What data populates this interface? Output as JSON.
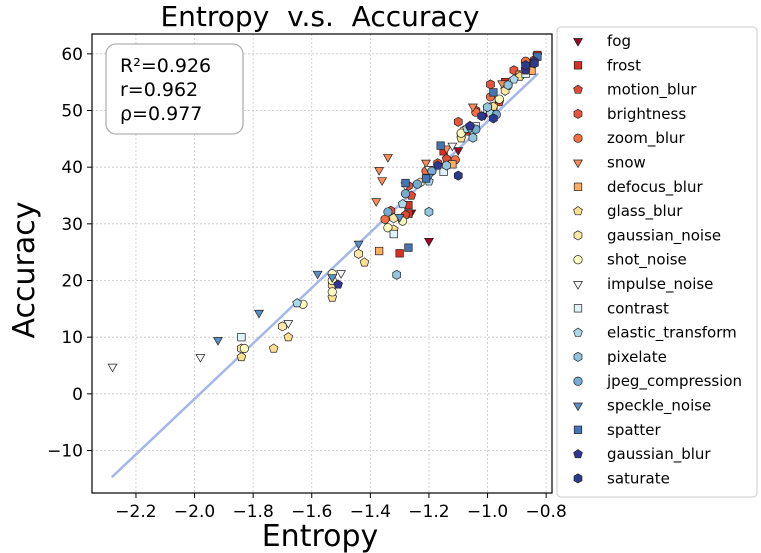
{
  "chart_data": {
    "type": "scatter",
    "title": "Entropy  v.s.  Accuracy",
    "xlabel": "Entropy",
    "ylabel": "Accuracy",
    "xlim": [
      -2.35,
      -0.78
    ],
    "ylim": [
      -17.5,
      63.5
    ],
    "xticks": [
      -2.2,
      -2.0,
      -1.8,
      -1.6,
      -1.4,
      -1.2,
      -1.0,
      -0.8
    ],
    "xtick_labels": [
      "−2.2",
      "−2.0",
      "−1.8",
      "−1.6",
      "−1.4",
      "−1.2",
      "−1.0",
      "−0.8"
    ],
    "yticks": [
      -10,
      0,
      10,
      20,
      30,
      40,
      50,
      60
    ],
    "ytick_labels": [
      "−10",
      "0",
      "10",
      "20",
      "30",
      "40",
      "50",
      "60"
    ],
    "grid": true,
    "legend_position": "outside-right",
    "stats": [
      "R²=0.926",
      "r=0.962",
      "ρ=0.977"
    ],
    "fit_line": {
      "color": "#a3b8e8",
      "x": [
        -2.28,
        -0.83
      ],
      "y": [
        -14.6,
        56.4
      ]
    },
    "series": [
      {
        "name": "fog",
        "marker": "triangle-down",
        "color": "#a50026",
        "points": [
          [
            -0.83,
            59.5
          ],
          [
            -0.86,
            57.8
          ],
          [
            -0.94,
            53.5
          ],
          [
            -1.01,
            49.2
          ],
          [
            -1.1,
            43.0
          ],
          [
            -1.2,
            39.5
          ],
          [
            -1.26,
            32.0
          ],
          [
            -1.2,
            27.0
          ]
        ]
      },
      {
        "name": "frost",
        "marker": "square",
        "color": "#d73027",
        "points": [
          [
            -0.83,
            59.8
          ],
          [
            -0.87,
            58.2
          ],
          [
            -0.94,
            55.0
          ],
          [
            -1.15,
            42.8
          ],
          [
            -1.27,
            33.3
          ],
          [
            -1.27,
            31.8
          ],
          [
            -1.3,
            24.8
          ]
        ]
      },
      {
        "name": "motion_blur",
        "marker": "pentagon",
        "color": "#e34a33",
        "points": [
          [
            -0.84,
            59.0
          ],
          [
            -0.87,
            57.3
          ],
          [
            -0.93,
            54.4
          ],
          [
            -0.96,
            51.5
          ],
          [
            -1.07,
            46.3
          ],
          [
            -1.14,
            41.5
          ],
          [
            -1.26,
            35.0
          ],
          [
            -1.28,
            31.6
          ]
        ]
      },
      {
        "name": "brightness",
        "marker": "hexagon",
        "color": "#e8543b",
        "points": [
          [
            -0.87,
            58.6
          ],
          [
            -0.91,
            57.1
          ],
          [
            -0.99,
            54.6
          ],
          [
            -1.04,
            50.0
          ],
          [
            -1.1,
            48.0
          ],
          [
            -1.17,
            40.7
          ],
          [
            -1.27,
            36.7
          ],
          [
            -1.33,
            32.3
          ]
        ]
      },
      {
        "name": "zoom_blur",
        "marker": "circle",
        "color": "#f46d43",
        "points": [
          [
            -0.87,
            58.7
          ],
          [
            -0.89,
            56.3
          ],
          [
            -0.99,
            52.4
          ],
          [
            -1.04,
            49.7
          ],
          [
            -1.09,
            45.9
          ],
          [
            -1.11,
            41.3
          ],
          [
            -1.21,
            39.3
          ],
          [
            -1.35,
            30.8
          ]
        ]
      },
      {
        "name": "snow",
        "marker": "triangle-down",
        "color": "#fc8d59",
        "points": [
          [
            -0.83,
            59.7
          ],
          [
            -0.87,
            58.0
          ],
          [
            -0.95,
            54.8
          ],
          [
            -1.05,
            50.7
          ],
          [
            -1.14,
            43.3
          ],
          [
            -1.21,
            40.8
          ],
          [
            -1.34,
            41.8
          ],
          [
            -1.37,
            39.5
          ],
          [
            -1.36,
            37.7
          ],
          [
            -1.38,
            34.0
          ]
        ]
      },
      {
        "name": "defocus_blur",
        "marker": "square",
        "color": "#fdae61",
        "points": [
          [
            -0.85,
            57.0
          ],
          [
            -0.89,
            56.3
          ],
          [
            -0.98,
            50.7
          ],
          [
            -1.12,
            40.5
          ],
          [
            -1.37,
            25.2
          ]
        ]
      },
      {
        "name": "glass_blur",
        "marker": "pentagon",
        "color": "#fee090",
        "points": [
          [
            -0.89,
            56.0
          ],
          [
            -0.98,
            50.7
          ],
          [
            -1.09,
            45.1
          ],
          [
            -1.32,
            29.0
          ],
          [
            -1.42,
            23.2
          ],
          [
            -1.53,
            17.0
          ],
          [
            -1.73,
            8.0
          ],
          [
            -1.68,
            10.0
          ],
          [
            -1.84,
            6.5
          ]
        ]
      },
      {
        "name": "gaussian_noise",
        "marker": "hexagon",
        "color": "#fee8a8",
        "points": [
          [
            -0.94,
            53.5
          ],
          [
            -1.08,
            46.5
          ],
          [
            -1.23,
            37.3
          ],
          [
            -1.32,
            31.0
          ],
          [
            -1.44,
            24.7
          ],
          [
            -1.53,
            19.2
          ],
          [
            -1.7,
            11.9
          ],
          [
            -1.84,
            8.0
          ]
        ]
      },
      {
        "name": "shot_noise",
        "marker": "circle",
        "color": "#ffffbf",
        "points": [
          [
            -0.96,
            52.0
          ],
          [
            -1.09,
            46.0
          ],
          [
            -1.29,
            30.5
          ],
          [
            -1.34,
            29.3
          ],
          [
            -1.53,
            21.2
          ],
          [
            -1.53,
            20.0
          ],
          [
            -1.53,
            18.0
          ],
          [
            -1.63,
            15.8
          ],
          [
            -1.83,
            8.0
          ]
        ]
      },
      {
        "name": "impulse_noise",
        "marker": "triangle-down",
        "color": "#f7f7f7",
        "points": [
          [
            -1.0,
            50.2
          ],
          [
            -1.12,
            43.8
          ],
          [
            -1.2,
            39.7
          ],
          [
            -1.28,
            36.8
          ],
          [
            -1.5,
            21.3
          ],
          [
            -1.68,
            12.5
          ],
          [
            -1.98,
            6.5
          ],
          [
            -2.28,
            4.8
          ]
        ]
      },
      {
        "name": "contrast",
        "marker": "square",
        "color": "#e0f3f8",
        "points": [
          [
            -0.87,
            56.5
          ],
          [
            -1.0,
            50.2
          ],
          [
            -1.04,
            47.2
          ],
          [
            -1.15,
            39.2
          ],
          [
            -1.32,
            28.2
          ],
          [
            -1.84,
            10.0
          ]
        ]
      },
      {
        "name": "elastic_transform",
        "marker": "pentagon",
        "color": "#abd9e9",
        "points": [
          [
            -0.91,
            55.5
          ],
          [
            -0.99,
            49.5
          ],
          [
            -1.07,
            46.8
          ],
          [
            -1.2,
            37.5
          ],
          [
            -1.29,
            33.5
          ],
          [
            -1.65,
            16.0
          ]
        ]
      },
      {
        "name": "pixelate",
        "marker": "hexagon",
        "color": "#92c5de",
        "points": [
          [
            -0.93,
            54.5
          ],
          [
            -1.0,
            50.6
          ],
          [
            -1.05,
            45.2
          ],
          [
            -1.14,
            40.3
          ],
          [
            -1.2,
            32.1
          ],
          [
            -1.31,
            21.0
          ]
        ]
      },
      {
        "name": "jpeg_compression",
        "marker": "circle",
        "color": "#74add1",
        "points": [
          [
            -0.97,
            49.3
          ],
          [
            -1.04,
            46.7
          ],
          [
            -1.19,
            39.3
          ],
          [
            -1.24,
            37.0
          ],
          [
            -1.28,
            35.3
          ],
          [
            -1.34,
            32.1
          ]
        ]
      },
      {
        "name": "speckle_noise",
        "marker": "triangle-down",
        "color": "#5b8fc9",
        "points": [
          [
            -1.06,
            46.7
          ],
          [
            -1.2,
            38.3
          ],
          [
            -1.3,
            31.2
          ],
          [
            -1.44,
            26.5
          ],
          [
            -1.58,
            21.2
          ],
          [
            -1.53,
            20.6
          ],
          [
            -1.78,
            14.3
          ],
          [
            -1.92,
            9.5
          ]
        ]
      },
      {
        "name": "spatter",
        "marker": "square",
        "color": "#4575b4",
        "points": [
          [
            -0.83,
            59.5
          ],
          [
            -0.98,
            53.2
          ],
          [
            -1.16,
            43.8
          ],
          [
            -1.21,
            38.0
          ],
          [
            -1.28,
            37.2
          ],
          [
            -1.27,
            25.8
          ]
        ]
      },
      {
        "name": "gaussian_blur",
        "marker": "pentagon",
        "color": "#313695",
        "points": [
          [
            -0.84,
            58.7
          ],
          [
            -0.87,
            57.1
          ],
          [
            -1.06,
            47.3
          ],
          [
            -1.17,
            40.3
          ],
          [
            -1.51,
            19.3
          ]
        ]
      },
      {
        "name": "saturate",
        "marker": "hexagon",
        "color": "#2b3a8c",
        "points": [
          [
            -0.84,
            58.3
          ],
          [
            -0.87,
            58.0
          ],
          [
            -0.98,
            48.6
          ],
          [
            -1.02,
            49.0
          ],
          [
            -1.1,
            38.5
          ]
        ]
      }
    ]
  }
}
